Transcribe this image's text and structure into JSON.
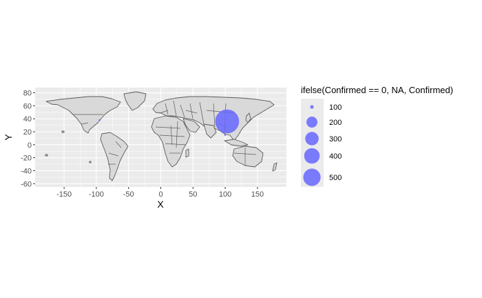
{
  "chart_data": {
    "type": "scatter",
    "title": "",
    "xlabel": "X",
    "ylabel": "Y",
    "xlim": [
      -195,
      195
    ],
    "ylim": [
      -65,
      88
    ],
    "x_ticks": [
      -150,
      -100,
      -50,
      0,
      50,
      100,
      150
    ],
    "x_tick_labels": [
      "-150",
      "-100",
      "-50",
      "0",
      "50",
      "100",
      "150"
    ],
    "y_ticks": [
      -60,
      -40,
      -20,
      0,
      20,
      40,
      60,
      80
    ],
    "y_tick_labels": [
      "-60",
      "-40",
      "-20",
      "0",
      "20",
      "40",
      "60",
      "80"
    ],
    "grid": true,
    "panel_background": "#ebebeb",
    "grid_color": "#ffffff",
    "basemap": "world-country-outlines",
    "land_fill": "#d9d9d9",
    "border_color": "#5a5a5a",
    "point_color": "#6666ff",
    "point_alpha": 0.85,
    "points": [
      {
        "x": 103,
        "y": 36,
        "value": 500
      },
      {
        "x": -95,
        "y": 38,
        "value": 2
      },
      {
        "x": 100,
        "y": 15,
        "value": 5
      }
    ],
    "legend": {
      "title": "ifelse(Confirmed == 0, NA, Confirmed)",
      "position": "right",
      "entries": [
        {
          "label": "100",
          "value": 100
        },
        {
          "label": "200",
          "value": 200
        },
        {
          "label": "300",
          "value": 300
        },
        {
          "label": "400",
          "value": 400
        },
        {
          "label": "500",
          "value": 500
        }
      ]
    }
  }
}
